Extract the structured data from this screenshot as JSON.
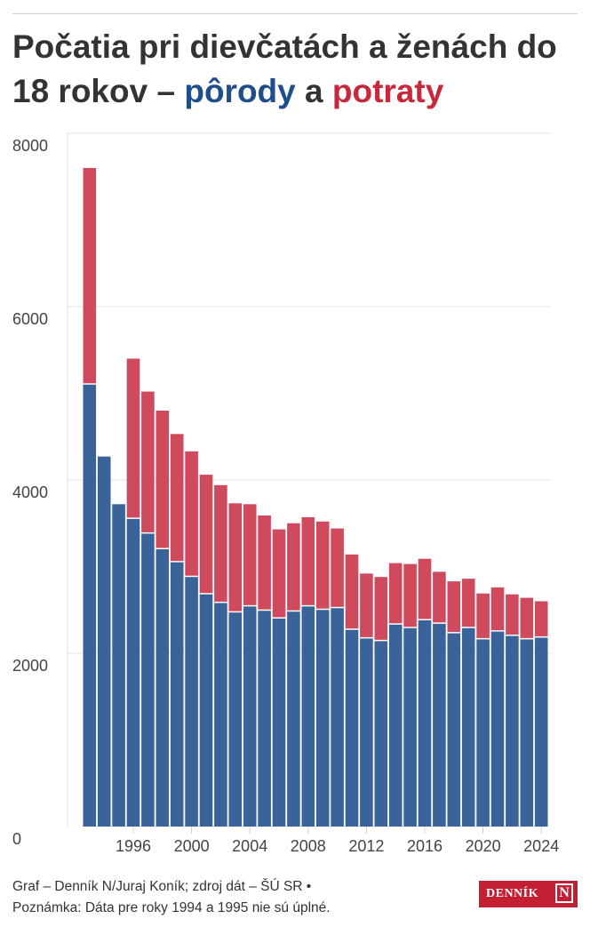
{
  "header": {
    "title_main": "Počatia pri dievčatách a ženách do 18 rokov –",
    "title_births": "pôrody",
    "title_and": "a",
    "title_abortions": "potraty"
  },
  "footer": {
    "line1": "Graf – Denník N/Juraj Koník; zdroj dát – ŠÚ SR •",
    "line2": "Poznámka: Dáta pre roky 1994 a 1995 nie sú úplné."
  },
  "logo": {
    "text": "DENNÍK",
    "mark": "N"
  },
  "colors": {
    "births": "#3a6399",
    "abortions": "#cf4a5c",
    "grid": "#e6e6e6"
  },
  "chart_data": {
    "type": "bar",
    "stacked": true,
    "title": "Počatia pri dievčatách a ženách do 18 rokov – pôrody a potraty",
    "xlabel": "",
    "ylabel": "",
    "ylim": [
      0,
      8000
    ],
    "yticks": [
      0,
      2000,
      4000,
      6000,
      8000
    ],
    "xticks": [
      1996,
      2000,
      2004,
      2008,
      2012,
      2016,
      2020,
      2024
    ],
    "grid": true,
    "categories": [
      1993,
      1994,
      1995,
      1996,
      1997,
      1998,
      1999,
      2000,
      2001,
      2002,
      2003,
      2004,
      2005,
      2006,
      2007,
      2008,
      2009,
      2010,
      2011,
      2012,
      2013,
      2014,
      2015,
      2016,
      2017,
      2018,
      2019,
      2020,
      2021,
      2022,
      2023,
      2024
    ],
    "series": [
      {
        "name": "pôrody",
        "color": "#3a6399",
        "values": [
          5100,
          4270,
          3720,
          3550,
          3380,
          3200,
          3050,
          2880,
          2680,
          2580,
          2470,
          2540,
          2490,
          2400,
          2480,
          2540,
          2500,
          2520,
          2270,
          2170,
          2140,
          2330,
          2290,
          2380,
          2340,
          2230,
          2290,
          2160,
          2250,
          2200,
          2160,
          2180
        ]
      },
      {
        "name": "potraty",
        "color": "#cf4a5c",
        "values": [
          2500,
          0,
          0,
          1850,
          1640,
          1600,
          1480,
          1450,
          1380,
          1360,
          1260,
          1180,
          1100,
          1030,
          1020,
          1030,
          1020,
          920,
          870,
          750,
          740,
          710,
          740,
          710,
          600,
          600,
          570,
          530,
          510,
          480,
          480,
          420
        ]
      }
    ]
  }
}
